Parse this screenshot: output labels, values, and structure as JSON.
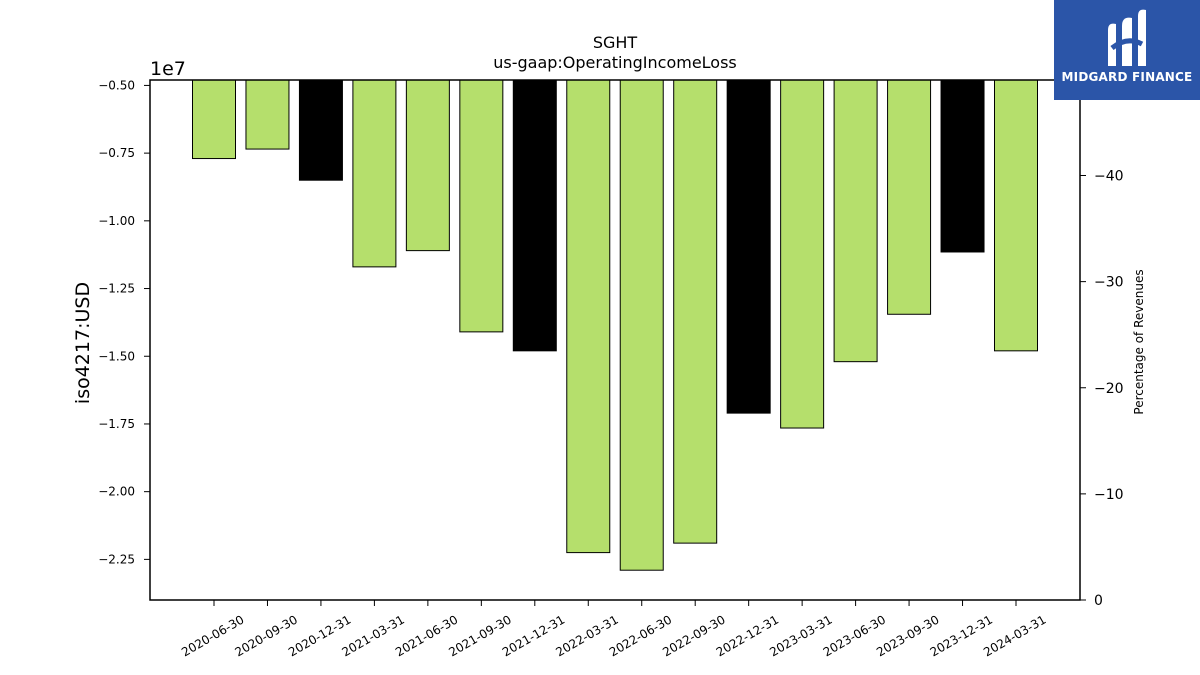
{
  "chart_data": {
    "type": "bar",
    "title": "SGHT",
    "subtitle": "us-gaap:OperatingIncomeLoss",
    "ylabel": "iso4217:USD",
    "y_offset_label": "1e7",
    "y2label": "Percentage of Revenues",
    "ylim": [
      -2.4,
      -0.48
    ],
    "y2lim": [
      0,
      -49
    ],
    "yticks": [
      "−0.50",
      "−0.75",
      "−1.00",
      "−1.25",
      "−1.50",
      "−1.75",
      "−2.00",
      "−2.25"
    ],
    "ytick_values": [
      -0.5,
      -0.75,
      -1.0,
      -1.25,
      -1.5,
      -1.75,
      -2.0,
      -2.25
    ],
    "y2ticks": [
      "0",
      "−10",
      "−20",
      "−30",
      "−40"
    ],
    "y2tick_values": [
      0,
      -10,
      -20,
      -30,
      -40
    ],
    "categories": [
      "2020-06-30",
      "2020-09-30",
      "2020-12-31",
      "2021-03-31",
      "2021-06-30",
      "2021-09-30",
      "2021-12-31",
      "2022-03-31",
      "2022-06-30",
      "2022-09-30",
      "2022-12-31",
      "2023-03-31",
      "2023-06-30",
      "2023-09-30",
      "2023-12-31",
      "2024-03-31"
    ],
    "values": [
      -0.77,
      -0.735,
      -0.85,
      -1.17,
      -1.11,
      -1.41,
      -1.48,
      -2.225,
      -2.29,
      -2.19,
      -1.71,
      -1.765,
      -1.52,
      -1.345,
      -1.115,
      -1.48
    ],
    "bar_colors": [
      "#b5df6c",
      "#b5df6c",
      "#000000",
      "#b5df6c",
      "#b5df6c",
      "#b5df6c",
      "#000000",
      "#b5df6c",
      "#b5df6c",
      "#b5df6c",
      "#000000",
      "#b5df6c",
      "#b5df6c",
      "#b5df6c",
      "#000000",
      "#b5df6c"
    ],
    "grid": false
  },
  "logo": {
    "text": "MIDGARD FINANCE",
    "background": "#2b55a8"
  }
}
